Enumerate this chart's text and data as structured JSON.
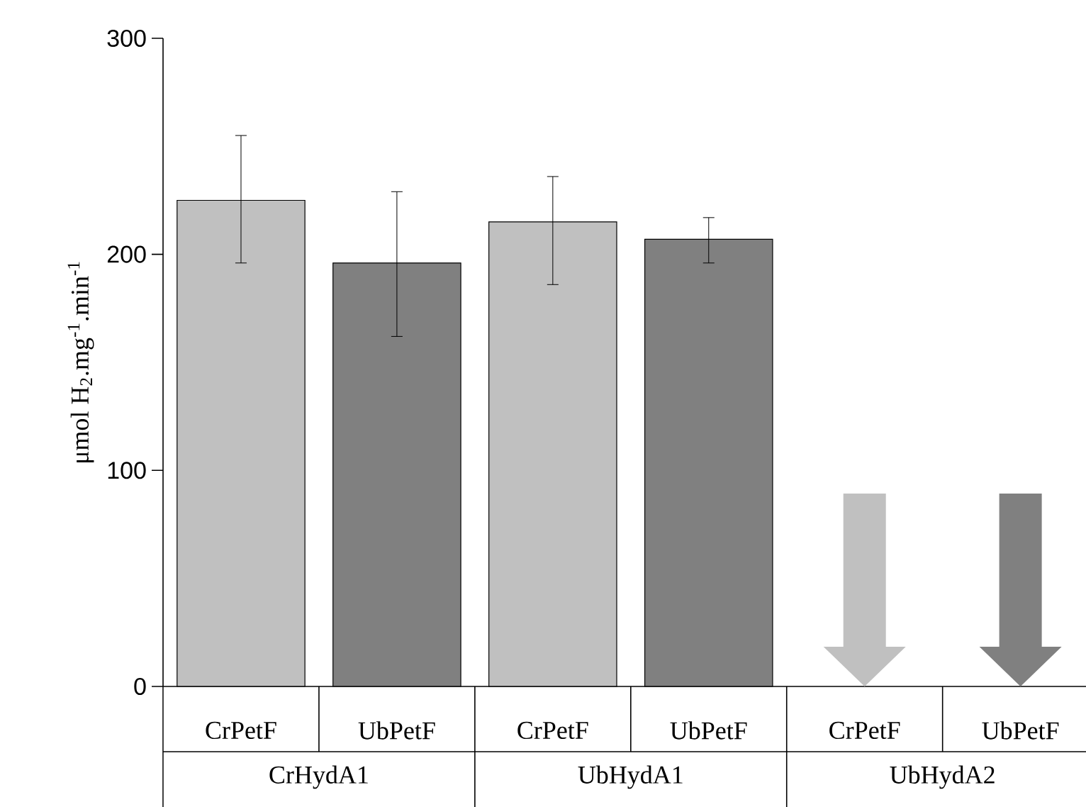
{
  "chart_data": {
    "type": "bar",
    "ylabel": "μmol H$_{2}$.mg$^{-1}$.min$^{-1}$",
    "categories": [
      "CrPetF",
      "UbPetF",
      "CrPetF",
      "UbPetF",
      "CrPetF",
      "UbPetF"
    ],
    "values": [
      225,
      196,
      215,
      207,
      null,
      null
    ],
    "colors": [
      "#c0c0c0",
      "#808080",
      "#c0c0c0",
      "#808080",
      "#c0c0c0",
      "#808080"
    ],
    "errors": [
      [
        196,
        255
      ],
      [
        162,
        229
      ],
      [
        186,
        236
      ],
      [
        196,
        217
      ],
      null,
      null
    ],
    "annotations": [
      "CrHydA1",
      "UbHydA1",
      "UbHydA2"
    ],
    "ylim": [
      0,
      300
    ],
    "yticks": [
      0,
      100,
      200,
      300
    ]
  }
}
